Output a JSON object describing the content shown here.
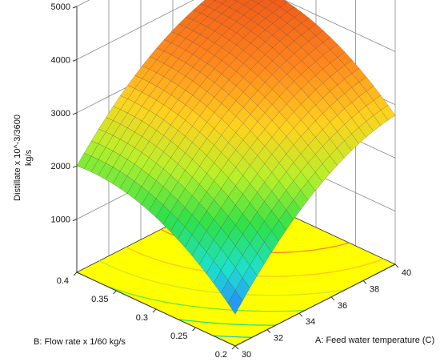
{
  "chart_data": {
    "type": "surface3d",
    "title": "",
    "zlabel_line1": "Distillate x 10^-3/3600",
    "zlabel_line2": "kg/s",
    "xlabel": "A: Feed water temperature (C)",
    "ylabel": "B: Flow rate x 1/60 kg/s",
    "x_ticks": [
      "30",
      "32",
      "34",
      "36",
      "38",
      "40"
    ],
    "y_ticks": [
      "0.2",
      "0.25",
      "0.3",
      "0.35",
      "0.4"
    ],
    "z_ticks": [
      "1000",
      "2000",
      "3000",
      "4000",
      "5000"
    ],
    "xlim": [
      30,
      40
    ],
    "ylim": [
      0.2,
      0.4
    ],
    "zlim": [
      0,
      5000
    ],
    "model": "quadratic response surface",
    "corner_values": [
      {
        "x": 30,
        "y": 0.2,
        "z": 600
      },
      {
        "x": 40,
        "y": 0.2,
        "z": 2800
      },
      {
        "x": 30,
        "y": 0.4,
        "z": 2000
      },
      {
        "x": 40,
        "y": 0.4,
        "z": 4000
      }
    ],
    "max_point": {
      "x": 37,
      "y": 0.34,
      "z": 4300
    },
    "color_scale": [
      "#2a7fff",
      "#1de0d0",
      "#2fe04a",
      "#b8f02a",
      "#ffd21f",
      "#ff8a1e",
      "#f05a1a"
    ],
    "floor_color": "#ffff00",
    "grid": true
  }
}
